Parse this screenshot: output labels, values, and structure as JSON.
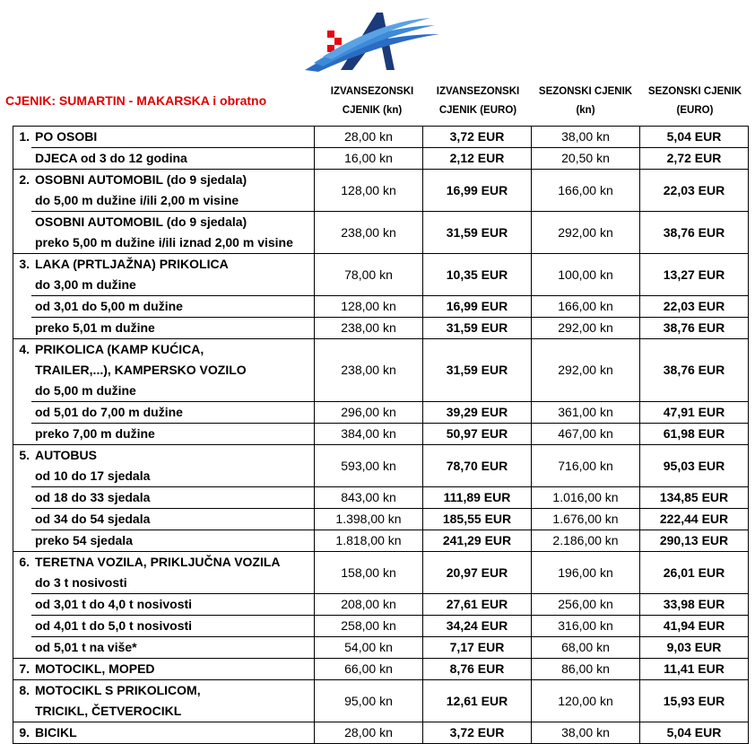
{
  "header": {
    "title": "CJENIK: SUMARTIN - MAKARSKA i obratno",
    "columns": [
      "IZVANSEZONSKI CJENIK (kn)",
      "IZVANSEZONSKI CJENIK (EURO)",
      "SEZONSKI CJENIK (kn)",
      "SEZONSKI CJENIK (EURO)"
    ]
  },
  "groups": [
    {
      "number": "1.",
      "rows": [
        {
          "lines": [
            "PO OSOBI"
          ],
          "prices": [
            "28,00 kn",
            "3,72 EUR",
            "38,00 kn",
            "5,04 EUR"
          ]
        },
        {
          "lines": [
            "DJECA od 3 do 12 godina"
          ],
          "prices": [
            "16,00 kn",
            "2,12 EUR",
            "20,50 kn",
            "2,72 EUR"
          ]
        }
      ]
    },
    {
      "number": "2.",
      "rows": [
        {
          "lines": [
            "OSOBNI AUTOMOBIL (do 9 sjedala)",
            "do 5,00 m dužine i/ili 2,00 m visine"
          ],
          "prices": [
            "128,00 kn",
            "16,99 EUR",
            "166,00 kn",
            "22,03 EUR"
          ]
        },
        {
          "lines": [
            "OSOBNI AUTOMOBIL (do 9 sjedala)",
            "preko 5,00 m dužine i/ili iznad 2,00 m visine"
          ],
          "prices": [
            "238,00 kn",
            "31,59 EUR",
            "292,00 kn",
            "38,76 EUR"
          ]
        }
      ]
    },
    {
      "number": "3.",
      "rows": [
        {
          "lines": [
            "LAKA (PRTLJAŽNA) PRIKOLICA",
            "do 3,00 m dužine"
          ],
          "prices": [
            "78,00 kn",
            "10,35 EUR",
            "100,00 kn",
            "13,27 EUR"
          ]
        },
        {
          "lines": [
            "od 3,01 do 5,00 m dužine"
          ],
          "prices": [
            "128,00 kn",
            "16,99 EUR",
            "166,00 kn",
            "22,03 EUR"
          ]
        },
        {
          "lines": [
            "preko 5,01 m dužine"
          ],
          "prices": [
            "238,00 kn",
            "31,59 EUR",
            "292,00 kn",
            "38,76 EUR"
          ]
        }
      ]
    },
    {
      "number": "4.",
      "rows": [
        {
          "lines": [
            "PRIKOLICA  (KAMP KUĆICA,",
            "TRAILER,...), KAMPERSKO VOZILO",
            "do 5,00 m dužine"
          ],
          "prices": [
            "238,00 kn",
            "31,59 EUR",
            "292,00 kn",
            "38,76 EUR"
          ]
        },
        {
          "lines": [
            "od 5,01 do 7,00 m dužine"
          ],
          "prices": [
            "296,00 kn",
            "39,29 EUR",
            "361,00 kn",
            "47,91 EUR"
          ]
        },
        {
          "lines": [
            "preko 7,00 m dužine"
          ],
          "prices": [
            "384,00 kn",
            "50,97 EUR",
            "467,00 kn",
            "61,98 EUR"
          ]
        }
      ]
    },
    {
      "number": "5.",
      "rows": [
        {
          "lines": [
            "AUTOBUS",
            "od 10 do 17 sjedala"
          ],
          "prices": [
            "593,00 kn",
            "78,70 EUR",
            "716,00 kn",
            "95,03 EUR"
          ]
        },
        {
          "lines": [
            "od 18 do 33 sjedala"
          ],
          "prices": [
            "843,00 kn",
            "111,89 EUR",
            "1.016,00 kn",
            "134,85 EUR"
          ]
        },
        {
          "lines": [
            "od 34 do 54 sjedala"
          ],
          "prices": [
            "1.398,00 kn",
            "185,55 EUR",
            "1.676,00 kn",
            "222,44 EUR"
          ]
        },
        {
          "lines": [
            "preko 54 sjedala"
          ],
          "prices": [
            "1.818,00 kn",
            "241,29 EUR",
            "2.186,00 kn",
            "290,13 EUR"
          ]
        }
      ]
    },
    {
      "number": "6.",
      "rows": [
        {
          "lines": [
            "TERETNA VOZILA, PRIKLJUČNA VOZILA",
            "do 3 t nosivosti"
          ],
          "prices": [
            "158,00 kn",
            "20,97 EUR",
            "196,00 kn",
            "26,01 EUR"
          ]
        },
        {
          "lines": [
            "od 3,01 t do 4,0 t nosivosti"
          ],
          "prices": [
            "208,00 kn",
            "27,61 EUR",
            "256,00 kn",
            "33,98 EUR"
          ]
        },
        {
          "lines": [
            "od 4,01 t do 5,0 t nosivosti"
          ],
          "prices": [
            "258,00 kn",
            "34,24 EUR",
            "316,00 kn",
            "41,94 EUR"
          ]
        },
        {
          "lines": [
            "od 5,01 t na više*"
          ],
          "prices": [
            "54,00 kn",
            "7,17 EUR",
            "68,00 kn",
            "9,03 EUR"
          ]
        }
      ]
    },
    {
      "number": "7.",
      "rows": [
        {
          "lines": [
            "MOTOCIKL, MOPED"
          ],
          "prices": [
            "66,00 kn",
            "8,76 EUR",
            "86,00 kn",
            "11,41 EUR"
          ]
        }
      ]
    },
    {
      "number": "8.",
      "rows": [
        {
          "lines": [
            "MOTOCIKL S PRIKOLICOM,",
            "TRICIKL, ČETVEROCIKL"
          ],
          "prices": [
            "95,00 kn",
            "12,61 EUR",
            "120,00 kn",
            "15,93 EUR"
          ]
        }
      ]
    },
    {
      "number": "9.",
      "rows": [
        {
          "lines": [
            "BICIKL"
          ],
          "prices": [
            "28,00 kn",
            "3,72 EUR",
            "38,00 kn",
            "5,04 EUR"
          ]
        }
      ]
    }
  ]
}
